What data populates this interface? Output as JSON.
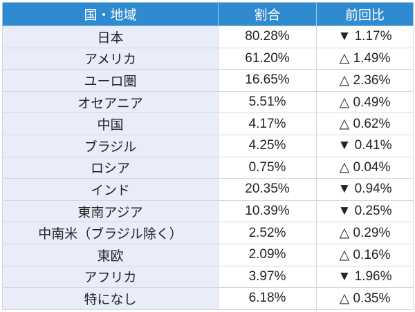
{
  "table": {
    "headers": [
      "国・地域",
      "割合",
      "前回比"
    ],
    "rows": [
      {
        "region": "日本",
        "share": "80.28%",
        "change": "▼ 1.17%"
      },
      {
        "region": "アメリカ",
        "share": "61.20%",
        "change": "△ 1.49%"
      },
      {
        "region": "ユーロ圏",
        "share": "16.65%",
        "change": "△ 2.36%"
      },
      {
        "region": "オセアニア",
        "share": "5.51%",
        "change": "△ 0.49%"
      },
      {
        "region": "中国",
        "share": "4.17%",
        "change": "△ 0.62%"
      },
      {
        "region": "ブラジル",
        "share": "4.25%",
        "change": "▼ 0.41%"
      },
      {
        "region": "ロシア",
        "share": "0.75%",
        "change": "△ 0.04%"
      },
      {
        "region": "インド",
        "share": "20.35%",
        "change": "▼ 0.94%"
      },
      {
        "region": "東南アジア",
        "share": "10.39%",
        "change": "▼ 0.25%"
      },
      {
        "region": "中南米（ブラジル除く）",
        "share": "2.52%",
        "change": "△ 0.29%"
      },
      {
        "region": "東欧",
        "share": "2.09%",
        "change": "△ 0.16%"
      },
      {
        "region": "アフリカ",
        "share": "3.97%",
        "change": "▼ 1.96%"
      },
      {
        "region": "特になし",
        "share": "6.18%",
        "change": "△ 0.35%"
      }
    ]
  },
  "colors": {
    "header_bg": "#2f8ad0",
    "region_bg": "#e9edf9"
  }
}
